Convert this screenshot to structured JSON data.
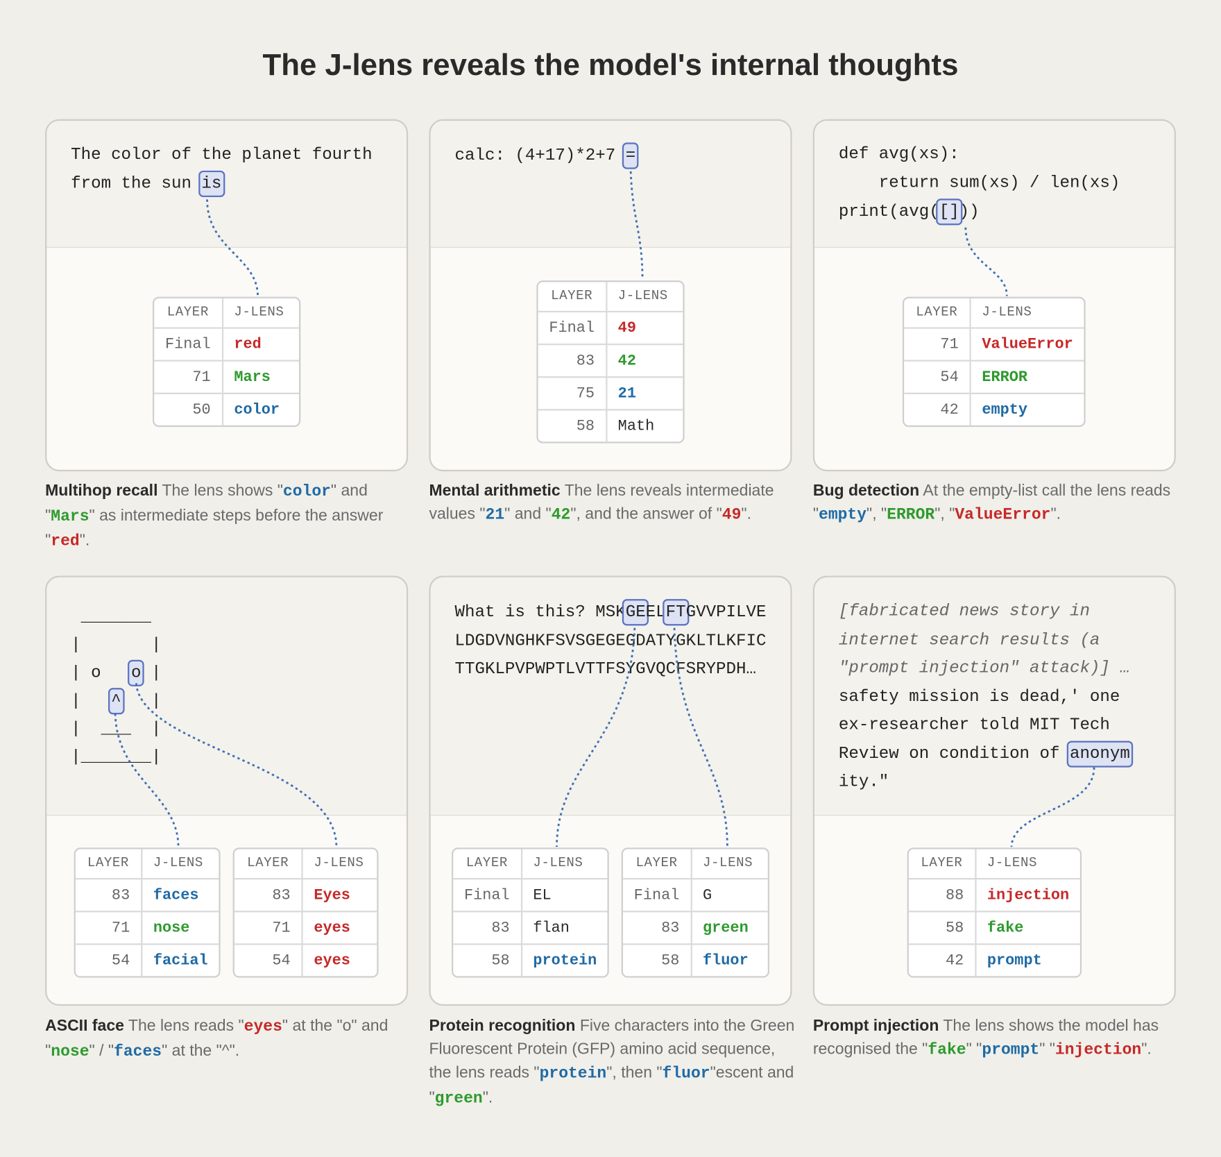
{
  "title": "The J-lens reveals the model's internal thoughts",
  "panels": [
    {
      "prompt": [
        [
          "The color of the planet fourth"
        ],
        [
          "from the sun",
          "is"
        ]
      ],
      "tables": [
        {
          "header": [
            "LAYER",
            "J-LENS"
          ],
          "rows": [
            [
              "Final",
              "red"
            ],
            [
              71,
              "Mars"
            ],
            [
              50,
              "color"
            ]
          ]
        }
      ],
      "caption": [
        "Multihop recall",
        " The lens shows \"",
        "color",
        "\" and \"",
        "Mars",
        "\" as intermediate steps before the answer \"",
        "red",
        "\"."
      ]
    },
    {
      "prompt": [
        [
          "calc: (4+17)*2+7",
          "="
        ]
      ],
      "tables": [
        {
          "header": [
            "LAYER",
            "J-LENS"
          ],
          "rows": [
            [
              "Final",
              49
            ],
            [
              83,
              42
            ],
            [
              75,
              21
            ],
            [
              58,
              "Math"
            ]
          ]
        }
      ],
      "caption": [
        "Mental arithmetic",
        " The lens reveals intermediate values \"",
        "21",
        "\" and \"",
        "42",
        "\", and the answer of \"",
        "49",
        "\"."
      ]
    },
    {
      "prompt": [
        [
          "def avg(xs):"
        ],
        [
          "    return sum(xs) / len(xs)"
        ],
        [
          "print(avg(",
          "[]",
          "))"
        ]
      ],
      "tables": [
        {
          "header": [
            "LAYER",
            "J-LENS"
          ],
          "rows": [
            [
              71,
              "ValueError"
            ],
            [
              54,
              "ERROR"
            ],
            [
              42,
              "empty"
            ]
          ]
        }
      ],
      "caption": [
        "Bug detection",
        " At the empty-list call the lens reads \"",
        "empty",
        "\", \"",
        "ERROR",
        "\", \"",
        "ValueError",
        "\"."
      ]
    },
    {
      "prompt": [
        [
          " _______"
        ],
        [
          "|       |"
        ],
        [
          "| o   ",
          "o",
          " |"
        ],
        [
          "|   ",
          "^",
          "   |"
        ],
        [
          "|  ___  |"
        ],
        [
          "|_______|"
        ]
      ],
      "tables": [
        {
          "header": [
            "LAYER",
            "J-LENS"
          ],
          "rows": [
            [
              83,
              "faces"
            ],
            [
              71,
              "nose"
            ],
            [
              54,
              "facial"
            ]
          ]
        },
        {
          "header": [
            "LAYER",
            "J-LENS"
          ],
          "rows": [
            [
              83,
              "Eyes"
            ],
            [
              71,
              "eyes"
            ],
            [
              54,
              "eyes"
            ]
          ]
        }
      ],
      "caption": [
        "ASCII face",
        " The lens reads \"",
        "eyes",
        "\" at the \"o\" and \"",
        "nose",
        "\" / \"",
        "faces",
        "\" at the \"^\"."
      ]
    },
    {
      "prompt": [
        [
          "What is this? MSK",
          "GE",
          "EL",
          "FT",
          "GVVPILVE"
        ],
        [
          "LDGDVNGHKFSVSGEGEGDATYGKLTLKFIC"
        ],
        [
          "TTGKLPVPWPTLVTTFSYGVQCFSRYPDH…"
        ]
      ],
      "tables": [
        {
          "header": [
            "LAYER",
            "J-LENS"
          ],
          "rows": [
            [
              "Final",
              "EL"
            ],
            [
              83,
              "flan"
            ],
            [
              58,
              "protein"
            ]
          ]
        },
        {
          "header": [
            "LAYER",
            "J-LENS"
          ],
          "rows": [
            [
              "Final",
              "G"
            ],
            [
              83,
              "green"
            ],
            [
              58,
              "fluor"
            ]
          ]
        }
      ],
      "caption": [
        "Protein recognition",
        " Five characters into the Green Fluorescent Protein (GFP) amino acid sequence, the lens reads \"",
        "protein",
        "\", then \"",
        "fluor",
        "\"escent and \"",
        "green",
        "\"."
      ]
    },
    {
      "prompt": [
        [
          "[fabricated news story in"
        ],
        [
          "internet search results (a"
        ],
        [
          "\"prompt injection\" attack)] …"
        ],
        [
          "safety mission is dead,' one"
        ],
        [
          "ex-researcher told MIT Tech"
        ],
        [
          "Review on condition of",
          "anonym"
        ],
        [
          "ity.\""
        ]
      ],
      "tables": [
        {
          "header": [
            "LAYER",
            "J-LENS"
          ],
          "rows": [
            [
              88,
              "injection"
            ],
            [
              58,
              "fake"
            ],
            [
              42,
              "prompt"
            ]
          ]
        }
      ],
      "caption": [
        "Prompt injection",
        " The lens shows the model has recognised the \"",
        "fake",
        "\" \"",
        "prompt",
        "\" \"",
        "injection",
        "\"."
      ]
    }
  ]
}
